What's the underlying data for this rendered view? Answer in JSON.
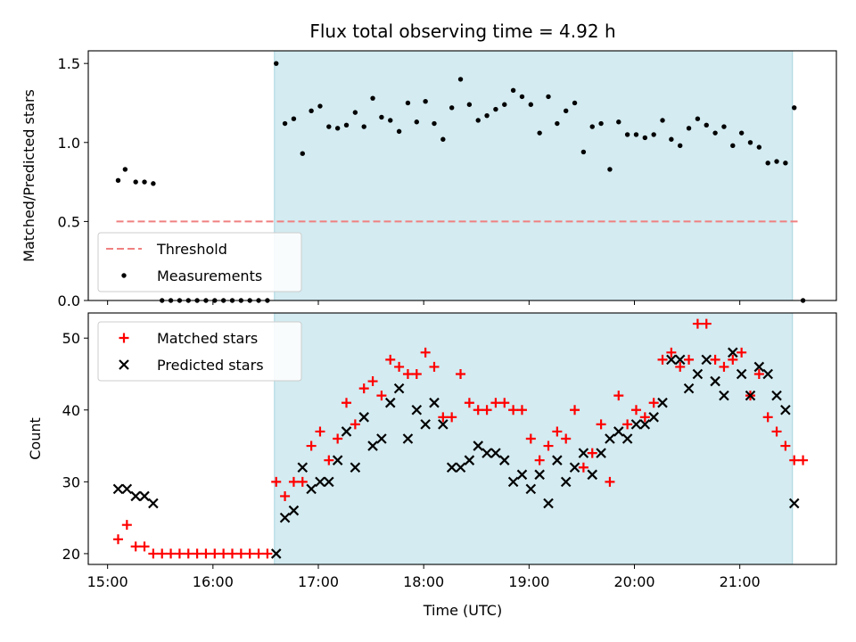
{
  "chart_data": {
    "title": "Flux total observing time = 4.92 h",
    "xlabel": "Time (UTC)",
    "x_unit": "UTC time of day",
    "xlim": [
      "14:49",
      "21:55"
    ],
    "xticks": [
      "15:00",
      "16:00",
      "17:00",
      "18:00",
      "19:00",
      "20:00",
      "21:00"
    ],
    "shaded_span": {
      "start": "16:35",
      "end": "21:30",
      "color": "#d3ebf1"
    },
    "panels": [
      {
        "type": "scatter",
        "ylabel": "Matched/Predicted stars",
        "ylim": [
          0,
          1.58
        ],
        "yticks": [
          "0.0",
          "0.5",
          "1.0",
          "1.5"
        ],
        "legend_position": "lower-left",
        "threshold": {
          "name": "Threshold",
          "value": 0.5,
          "x_start": "15:05",
          "x_end": "21:33",
          "color": "#f08080",
          "style": "dashed"
        },
        "series": [
          {
            "name": "Measurements",
            "color": "#000000",
            "marker": "dot",
            "points": [
              [
                "15:06",
                0.76
              ],
              [
                "15:10",
                0.83
              ],
              [
                "15:16",
                0.75
              ],
              [
                "15:21",
                0.75
              ],
              [
                "15:26",
                0.74
              ],
              [
                "15:31",
                0
              ],
              [
                "15:36",
                0
              ],
              [
                "15:41",
                0
              ],
              [
                "15:46",
                0
              ],
              [
                "15:51",
                0
              ],
              [
                "15:56",
                0
              ],
              [
                "16:01",
                0
              ],
              [
                "16:06",
                0
              ],
              [
                "16:11",
                0
              ],
              [
                "16:16",
                0
              ],
              [
                "16:21",
                0
              ],
              [
                "16:26",
                0
              ],
              [
                "16:31",
                0
              ],
              [
                "16:36",
                1.5
              ],
              [
                "16:41",
                1.12
              ],
              [
                "16:46",
                1.15
              ],
              [
                "16:51",
                0.93
              ],
              [
                "16:56",
                1.2
              ],
              [
                "17:01",
                1.23
              ],
              [
                "17:06",
                1.1
              ],
              [
                "17:11",
                1.09
              ],
              [
                "17:16",
                1.11
              ],
              [
                "17:21",
                1.19
              ],
              [
                "17:26",
                1.1
              ],
              [
                "17:31",
                1.28
              ],
              [
                "17:36",
                1.16
              ],
              [
                "17:41",
                1.14
              ],
              [
                "17:46",
                1.07
              ],
              [
                "17:51",
                1.25
              ],
              [
                "17:56",
                1.13
              ],
              [
                "18:01",
                1.26
              ],
              [
                "18:06",
                1.12
              ],
              [
                "18:11",
                1.02
              ],
              [
                "18:16",
                1.22
              ],
              [
                "18:21",
                1.4
              ],
              [
                "18:26",
                1.24
              ],
              [
                "18:31",
                1.14
              ],
              [
                "18:36",
                1.17
              ],
              [
                "18:41",
                1.21
              ],
              [
                "18:46",
                1.24
              ],
              [
                "18:51",
                1.33
              ],
              [
                "18:56",
                1.29
              ],
              [
                "19:01",
                1.24
              ],
              [
                "19:06",
                1.06
              ],
              [
                "19:11",
                1.29
              ],
              [
                "19:16",
                1.12
              ],
              [
                "19:21",
                1.2
              ],
              [
                "19:26",
                1.25
              ],
              [
                "19:31",
                0.94
              ],
              [
                "19:36",
                1.1
              ],
              [
                "19:41",
                1.12
              ],
              [
                "19:46",
                0.83
              ],
              [
                "19:51",
                1.13
              ],
              [
                "19:56",
                1.05
              ],
              [
                "20:01",
                1.05
              ],
              [
                "20:06",
                1.03
              ],
              [
                "20:11",
                1.05
              ],
              [
                "20:16",
                1.14
              ],
              [
                "20:21",
                1.02
              ],
              [
                "20:26",
                0.98
              ],
              [
                "20:31",
                1.09
              ],
              [
                "20:36",
                1.15
              ],
              [
                "20:41",
                1.11
              ],
              [
                "20:46",
                1.06
              ],
              [
                "20:51",
                1.1
              ],
              [
                "20:56",
                0.98
              ],
              [
                "21:01",
                1.06
              ],
              [
                "21:06",
                1.0
              ],
              [
                "21:11",
                0.97
              ],
              [
                "21:16",
                0.87
              ],
              [
                "21:21",
                0.88
              ],
              [
                "21:26",
                0.87
              ],
              [
                "21:31",
                1.22
              ],
              [
                "21:36",
                0
              ]
            ]
          }
        ]
      },
      {
        "type": "scatter",
        "ylabel": "Count",
        "ylim": [
          18.5,
          53.5
        ],
        "yticks": [
          "20",
          "30",
          "40",
          "50"
        ],
        "legend_position": "upper-left",
        "series": [
          {
            "name": "Matched stars",
            "color": "#ff0000",
            "marker": "plus",
            "points": [
              [
                "15:06",
                22
              ],
              [
                "15:11",
                24
              ],
              [
                "15:16",
                21
              ],
              [
                "15:21",
                21
              ],
              [
                "15:26",
                20
              ],
              [
                "15:31",
                20
              ],
              [
                "15:36",
                20
              ],
              [
                "15:41",
                20
              ],
              [
                "15:46",
                20
              ],
              [
                "15:51",
                20
              ],
              [
                "15:56",
                20
              ],
              [
                "16:01",
                20
              ],
              [
                "16:06",
                20
              ],
              [
                "16:11",
                20
              ],
              [
                "16:16",
                20
              ],
              [
                "16:21",
                20
              ],
              [
                "16:26",
                20
              ],
              [
                "16:31",
                20
              ],
              [
                "16:36",
                30
              ],
              [
                "16:41",
                28
              ],
              [
                "16:46",
                30
              ],
              [
                "16:51",
                30
              ],
              [
                "16:56",
                35
              ],
              [
                "17:01",
                37
              ],
              [
                "17:06",
                33
              ],
              [
                "17:11",
                36
              ],
              [
                "17:16",
                41
              ],
              [
                "17:21",
                38
              ],
              [
                "17:26",
                43
              ],
              [
                "17:31",
                44
              ],
              [
                "17:36",
                42
              ],
              [
                "17:41",
                47
              ],
              [
                "17:46",
                46
              ],
              [
                "17:51",
                45
              ],
              [
                "17:56",
                45
              ],
              [
                "18:01",
                48
              ],
              [
                "18:06",
                46
              ],
              [
                "18:11",
                39
              ],
              [
                "18:16",
                39
              ],
              [
                "18:21",
                45
              ],
              [
                "18:26",
                41
              ],
              [
                "18:31",
                40
              ],
              [
                "18:36",
                40
              ],
              [
                "18:41",
                41
              ],
              [
                "18:46",
                41
              ],
              [
                "18:51",
                40
              ],
              [
                "18:56",
                40
              ],
              [
                "19:01",
                36
              ],
              [
                "19:06",
                33
              ],
              [
                "19:11",
                35
              ],
              [
                "19:16",
                37
              ],
              [
                "19:21",
                36
              ],
              [
                "19:26",
                40
              ],
              [
                "19:31",
                32
              ],
              [
                "19:36",
                34
              ],
              [
                "19:41",
                38
              ],
              [
                "19:46",
                30
              ],
              [
                "19:51",
                42
              ],
              [
                "19:56",
                38
              ],
              [
                "20:01",
                40
              ],
              [
                "20:06",
                39
              ],
              [
                "20:11",
                41
              ],
              [
                "20:16",
                47
              ],
              [
                "20:21",
                48
              ],
              [
                "20:26",
                46
              ],
              [
                "20:31",
                47
              ],
              [
                "20:36",
                52
              ],
              [
                "20:41",
                52
              ],
              [
                "20:46",
                47
              ],
              [
                "20:51",
                46
              ],
              [
                "20:56",
                47
              ],
              [
                "21:01",
                48
              ],
              [
                "21:06",
                42
              ],
              [
                "21:11",
                45
              ],
              [
                "21:16",
                39
              ],
              [
                "21:21",
                37
              ],
              [
                "21:26",
                35
              ],
              [
                "21:31",
                33
              ],
              [
                "21:36",
                33
              ]
            ]
          },
          {
            "name": "Predicted stars",
            "color": "#000000",
            "marker": "x",
            "points": [
              [
                "15:06",
                29
              ],
              [
                "15:11",
                29
              ],
              [
                "15:16",
                28
              ],
              [
                "15:21",
                28
              ],
              [
                "15:26",
                27
              ],
              [
                "16:36",
                20
              ],
              [
                "16:41",
                25
              ],
              [
                "16:46",
                26
              ],
              [
                "16:51",
                32
              ],
              [
                "16:56",
                29
              ],
              [
                "17:01",
                30
              ],
              [
                "17:06",
                30
              ],
              [
                "17:11",
                33
              ],
              [
                "17:16",
                37
              ],
              [
                "17:21",
                32
              ],
              [
                "17:26",
                39
              ],
              [
                "17:31",
                35
              ],
              [
                "17:36",
                36
              ],
              [
                "17:41",
                41
              ],
              [
                "17:46",
                43
              ],
              [
                "17:51",
                36
              ],
              [
                "17:56",
                40
              ],
              [
                "18:01",
                38
              ],
              [
                "18:06",
                41
              ],
              [
                "18:11",
                38
              ],
              [
                "18:16",
                32
              ],
              [
                "18:21",
                32
              ],
              [
                "18:26",
                33
              ],
              [
                "18:31",
                35
              ],
              [
                "18:36",
                34
              ],
              [
                "18:41",
                34
              ],
              [
                "18:46",
                33
              ],
              [
                "18:51",
                30
              ],
              [
                "18:56",
                31
              ],
              [
                "19:01",
                29
              ],
              [
                "19:06",
                31
              ],
              [
                "19:11",
                27
              ],
              [
                "19:16",
                33
              ],
              [
                "19:21",
                30
              ],
              [
                "19:26",
                32
              ],
              [
                "19:31",
                34
              ],
              [
                "19:36",
                31
              ],
              [
                "19:41",
                34
              ],
              [
                "19:46",
                36
              ],
              [
                "19:51",
                37
              ],
              [
                "19:56",
                36
              ],
              [
                "20:01",
                38
              ],
              [
                "20:06",
                38
              ],
              [
                "20:11",
                39
              ],
              [
                "20:16",
                41
              ],
              [
                "20:21",
                47
              ],
              [
                "20:26",
                47
              ],
              [
                "20:31",
                43
              ],
              [
                "20:36",
                45
              ],
              [
                "20:41",
                47
              ],
              [
                "20:46",
                44
              ],
              [
                "20:51",
                42
              ],
              [
                "20:56",
                48
              ],
              [
                "21:01",
                45
              ],
              [
                "21:06",
                42
              ],
              [
                "21:11",
                46
              ],
              [
                "21:16",
                45
              ],
              [
                "21:21",
                42
              ],
              [
                "21:26",
                40
              ],
              [
                "21:31",
                27
              ]
            ]
          }
        ]
      }
    ]
  }
}
